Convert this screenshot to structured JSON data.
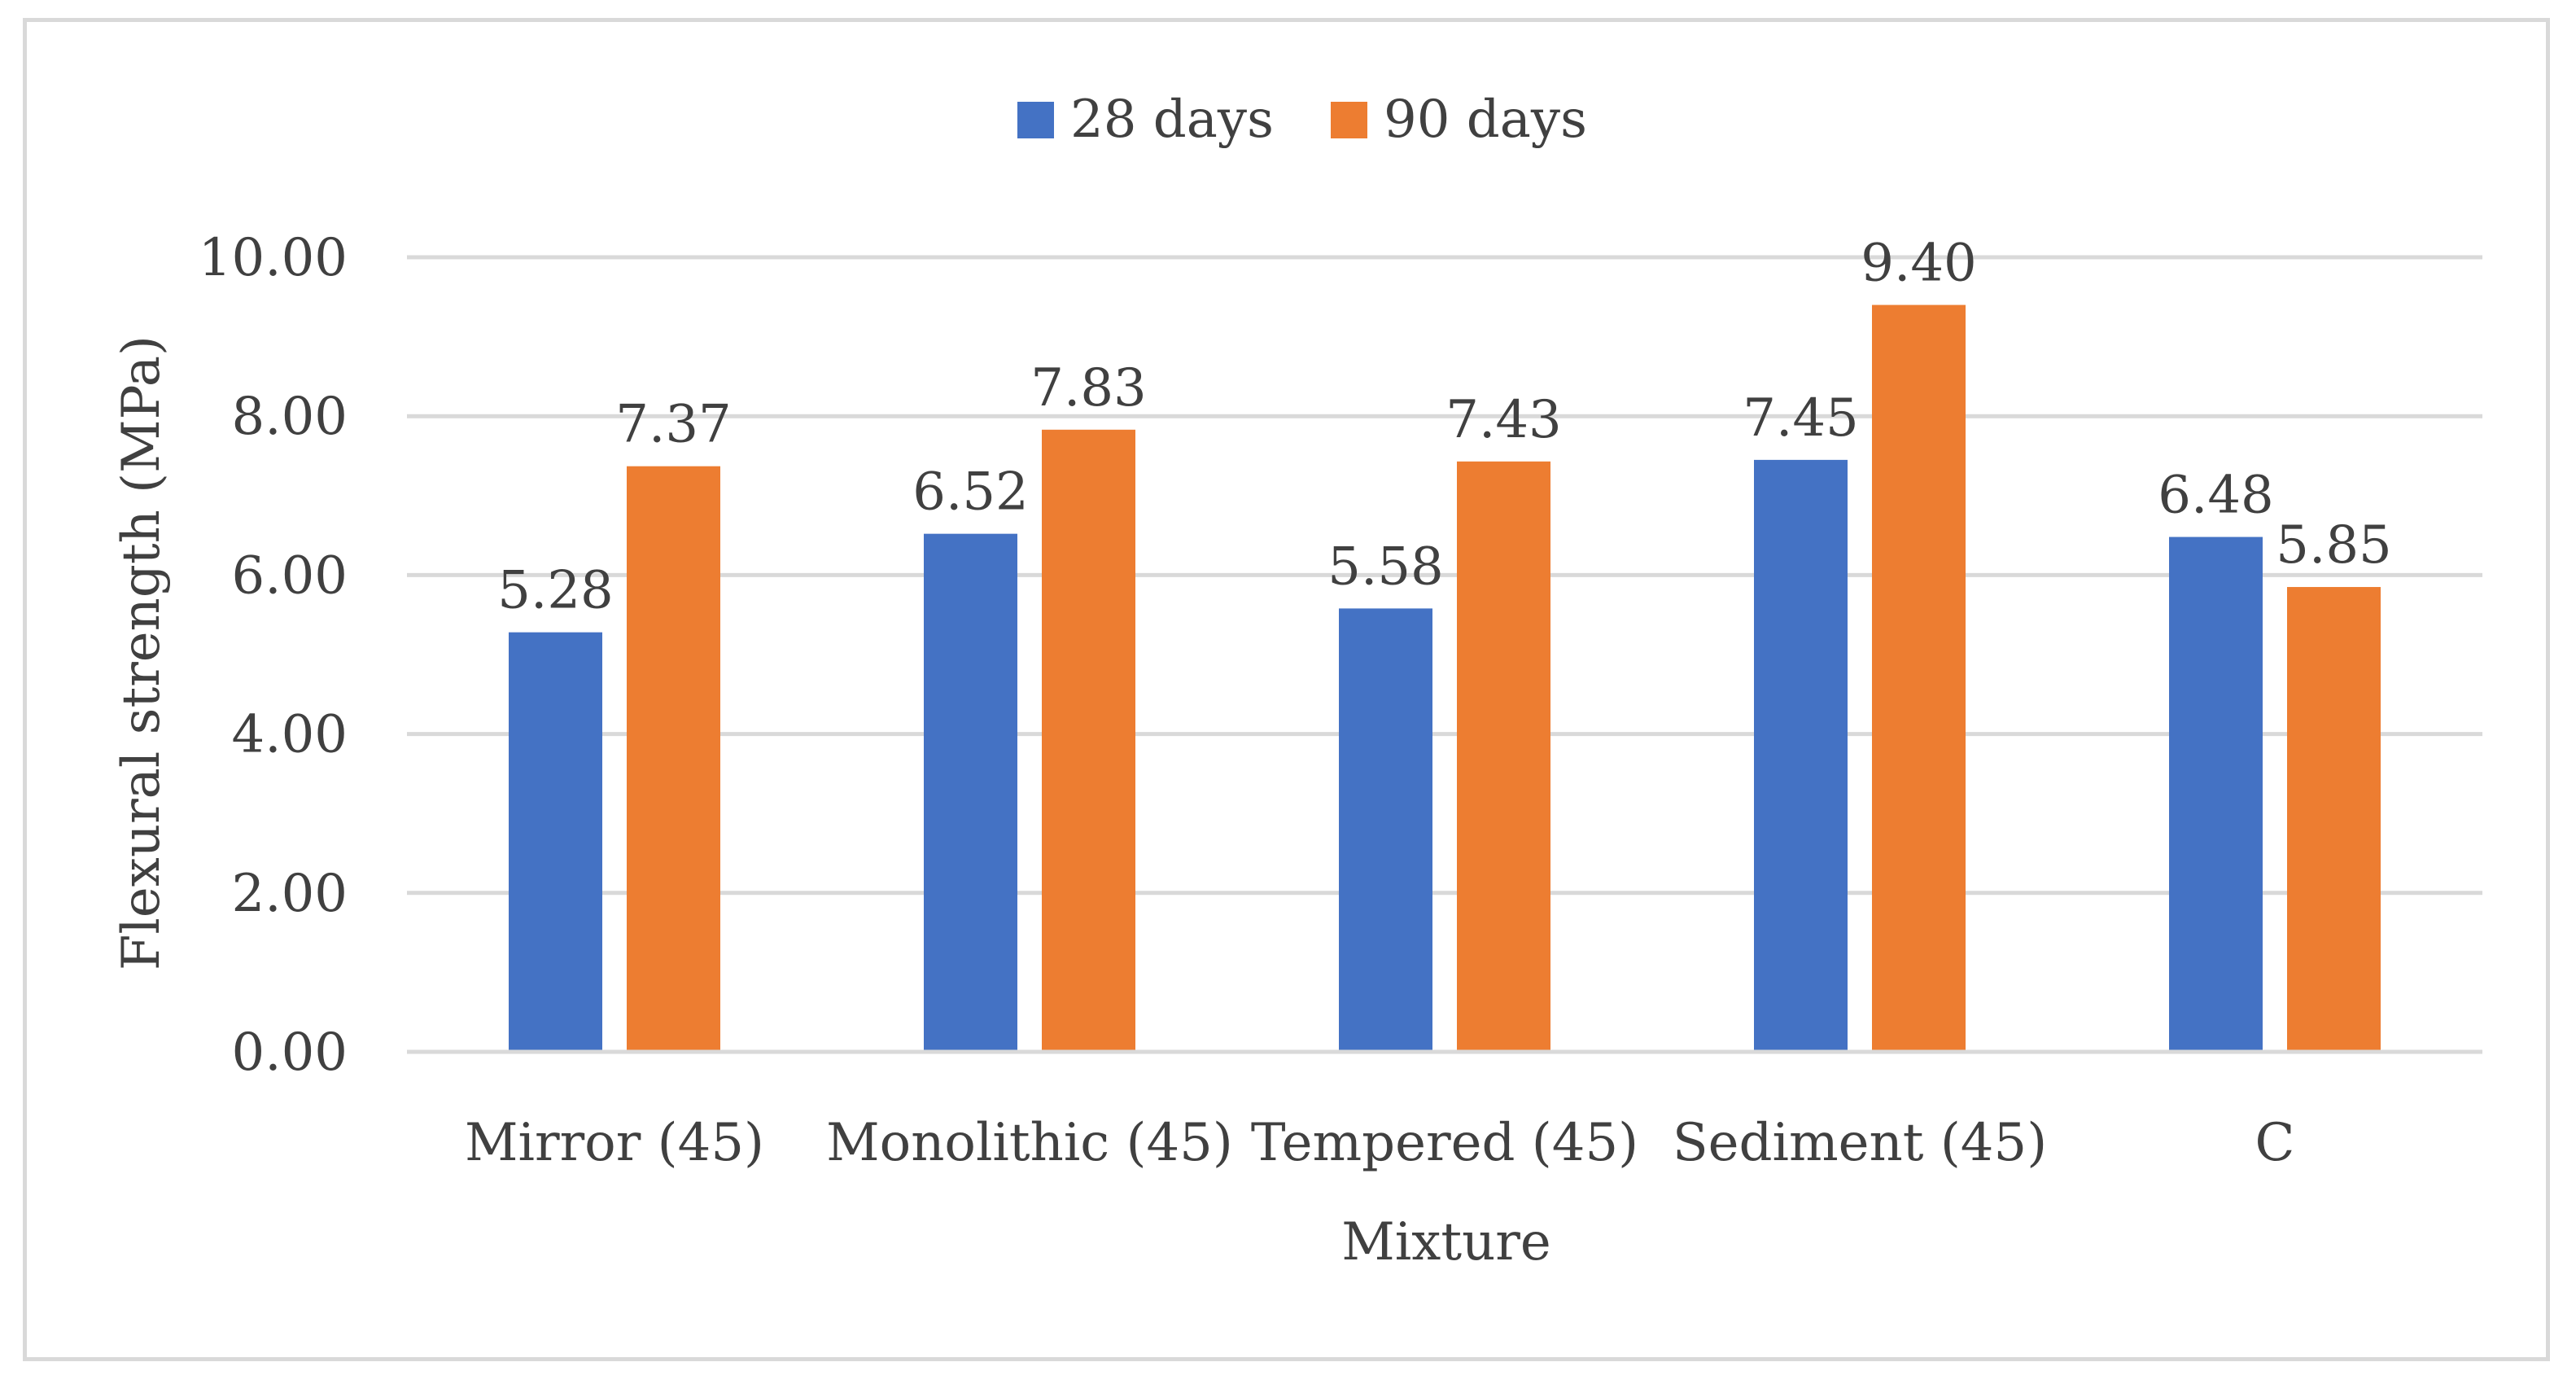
{
  "chart_data": {
    "type": "bar",
    "title": "",
    "xlabel": "Mixture",
    "ylabel": "Flexural strength (MPa)",
    "ylim": [
      0,
      10
    ],
    "yticks": [
      "0.00",
      "2.00",
      "4.00",
      "6.00",
      "8.00",
      "10.00"
    ],
    "grid": true,
    "legend_position": "top-center",
    "categories": [
      "Mirror (45)",
      "Monolithic (45)",
      "Tempered (45)",
      "Sediment (45)",
      "C"
    ],
    "series": [
      {
        "name": "28 days",
        "color": "#4472c4",
        "values": [
          5.28,
          6.52,
          5.58,
          7.45,
          6.48
        ],
        "labels": [
          "5.28",
          "6.52",
          "5.58",
          "7.45",
          "6.48"
        ]
      },
      {
        "name": "90 days",
        "color": "#ed7d31",
        "values": [
          7.37,
          7.83,
          7.43,
          9.4,
          5.85
        ],
        "labels": [
          "7.37",
          "7.83",
          "7.43",
          "9.40",
          "5.85"
        ]
      }
    ]
  }
}
